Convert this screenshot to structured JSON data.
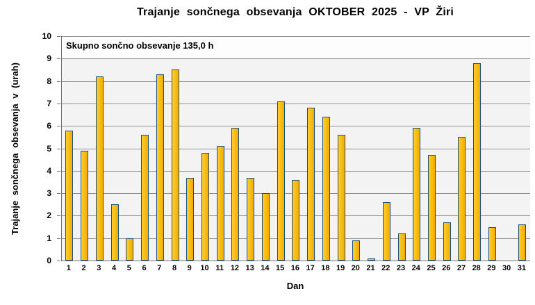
{
  "chart_data": {
    "type": "bar",
    "title": "Trajanje sončnega obsevanja OKTOBER 2025 - VP Žiri",
    "annotation": "Skupno sončno obsevanje 135,0 h",
    "xlabel": "Dan",
    "ylabel": "Trajanje sončnega obsevanja v (urah)",
    "ylim": [
      0,
      10
    ],
    "yticks": [
      0,
      1,
      2,
      3,
      4,
      5,
      6,
      7,
      8,
      9,
      10
    ],
    "grid": true,
    "legend": "none",
    "categories": [
      1,
      2,
      3,
      4,
      5,
      6,
      7,
      8,
      9,
      10,
      11,
      12,
      13,
      14,
      15,
      16,
      17,
      18,
      19,
      20,
      21,
      22,
      23,
      24,
      25,
      26,
      27,
      28,
      29,
      30,
      31
    ],
    "values": [
      5.8,
      4.9,
      8.2,
      2.5,
      1.0,
      5.6,
      8.3,
      8.5,
      3.7,
      4.8,
      5.1,
      5.9,
      3.7,
      3.0,
      7.1,
      3.6,
      6.8,
      6.4,
      5.6,
      0.9,
      0.1,
      2.6,
      1.2,
      5.9,
      4.7,
      1.7,
      5.5,
      8.8,
      1.5,
      0.0,
      1.6
    ],
    "total_hours": "135,0 h"
  },
  "colors": {
    "bar_fill_light": "#FFCD2E",
    "bar_fill_dark": "#F2AC00",
    "bar_border": "#1F4E79",
    "plot_bg": "#F3F3F3",
    "band_bg": "#FDFDFD",
    "gridline": "#8F8F8F",
    "axis": "#707070",
    "text": "#000000"
  }
}
